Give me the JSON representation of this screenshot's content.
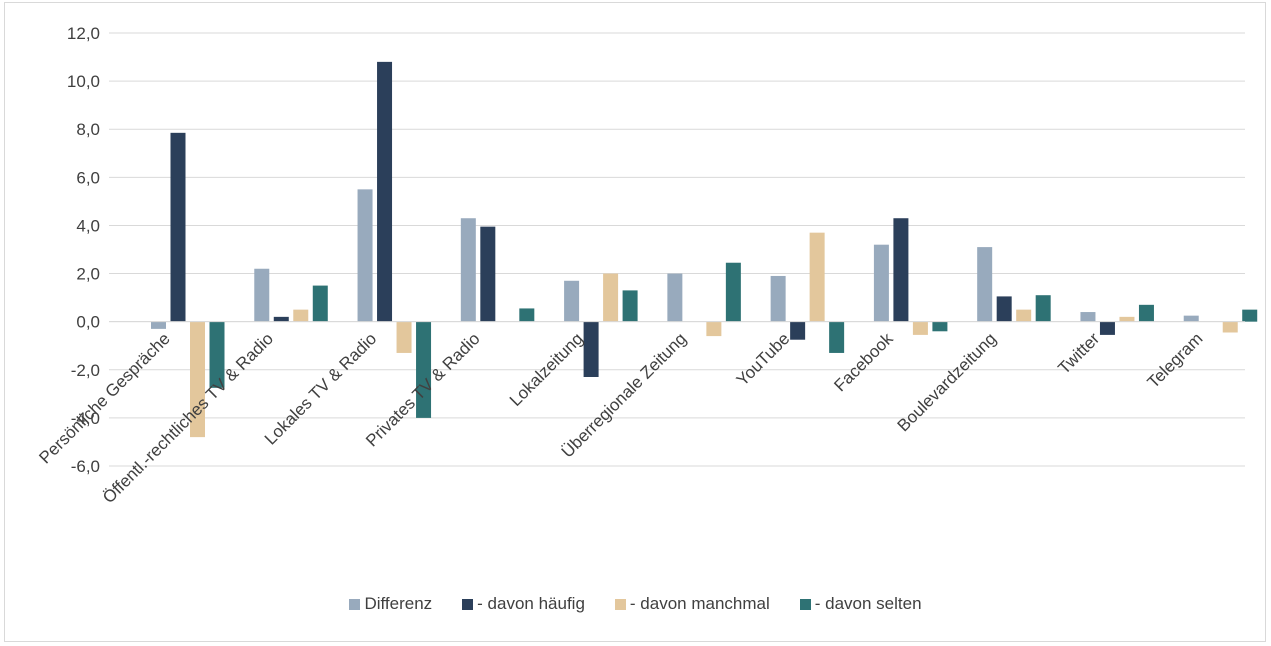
{
  "chart_data": {
    "type": "bar",
    "title": "",
    "xlabel": "",
    "ylabel": "",
    "ylim": [
      -6,
      12
    ],
    "yticks": [
      "12,0",
      "10,0",
      "8,0",
      "6,0",
      "4,0",
      "2,0",
      "0,0",
      "-2,0",
      "-4,0",
      "-6,0"
    ],
    "grid": true,
    "legend_position": "bottom",
    "categories": [
      "Persönliche Gespräche",
      "Öffentl.-rechtliches TV & Radio",
      "Lokales TV & Radio",
      "Privates TV & Radio",
      "Lokalzeitung",
      "Überregionale Zeitung",
      "YouTube",
      "Facebook",
      "Boulevardzeitung",
      "Twitter",
      "Telegram"
    ],
    "series": [
      {
        "name": "Differenz",
        "color": "#98aabd",
        "values": [
          -0.3,
          2.2,
          5.5,
          4.3,
          1.7,
          2.0,
          1.9,
          3.2,
          3.1,
          0.4,
          0.25
        ]
      },
      {
        "name": "- davon häufig",
        "color": "#2b3f5a",
        "values": [
          7.85,
          0.2,
          10.8,
          3.95,
          -2.3,
          0.0,
          -0.75,
          4.3,
          1.05,
          -0.55,
          0.0
        ]
      },
      {
        "name": "- davon manchmal",
        "color": "#e3c79c",
        "values": [
          -4.8,
          0.5,
          -1.3,
          0.0,
          2.0,
          -0.6,
          3.7,
          -0.55,
          0.5,
          0.2,
          -0.45
        ]
      },
      {
        "name": "- davon selten",
        "color": "#2e7274",
        "values": [
          -2.75,
          1.5,
          -4.0,
          0.55,
          1.3,
          2.45,
          -1.3,
          -0.4,
          1.1,
          0.7,
          0.5
        ]
      }
    ]
  }
}
